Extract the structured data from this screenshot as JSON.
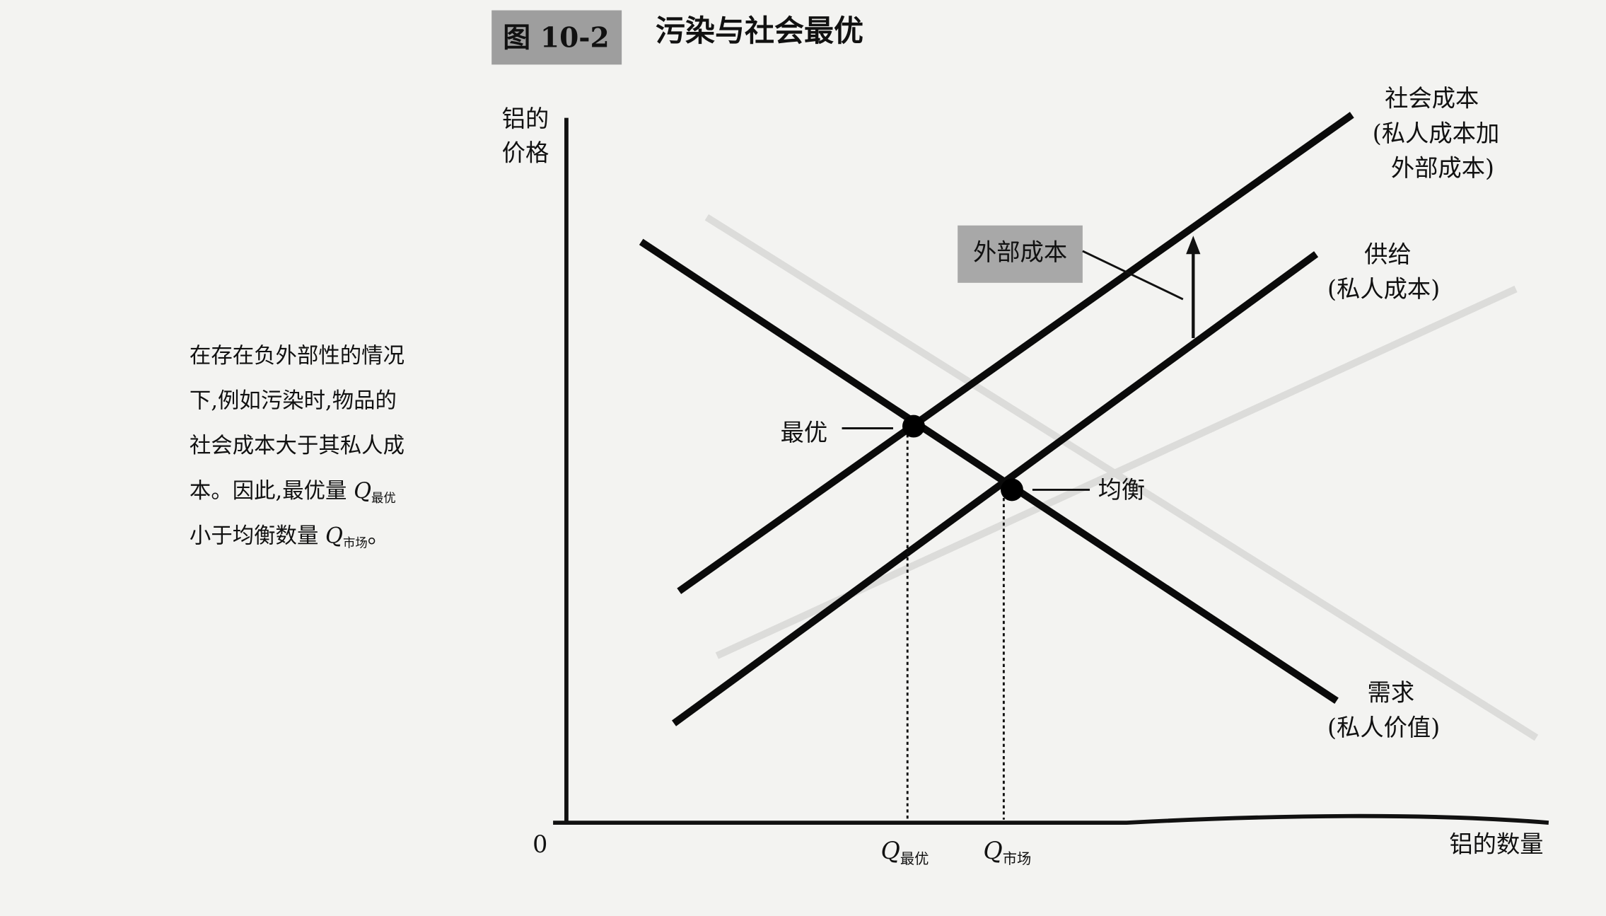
{
  "figure": {
    "label": "图 10-2",
    "title": "污染与社会最优"
  },
  "caption": {
    "lines": [
      "在存在负外部性的情况",
      "下,例如污染时,物品的",
      "社会成本大于其私人成"
    ],
    "line4": {
      "text": "本。因此,最优量 ",
      "q": "Q",
      "sub": "最优"
    },
    "line5": {
      "text": "小于均衡数量 ",
      "q": "Q",
      "sub": "市场",
      "end": "。"
    }
  },
  "axes": {
    "y_label": [
      "铝的",
      "价格"
    ],
    "x_label": "铝的数量",
    "origin": "0"
  },
  "curves": {
    "social_cost": [
      "社会成本",
      "(私人成本加",
      "外部成本)"
    ],
    "supply": [
      "供给",
      "(私人成本)"
    ],
    "demand": [
      "需求",
      "(私人价值)"
    ],
    "external_cost": "外部成本"
  },
  "points": {
    "optimum": "最优",
    "equilibrium": "均衡"
  },
  "quantities": {
    "optimum": {
      "q": "Q",
      "sub": "最优"
    },
    "market": {
      "q": "Q",
      "sub": "市场"
    }
  }
}
